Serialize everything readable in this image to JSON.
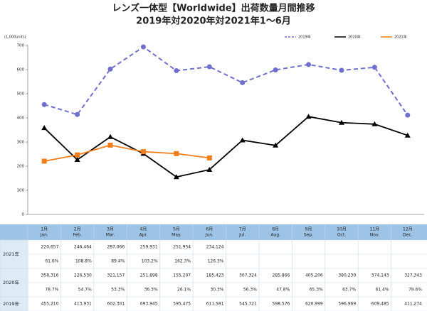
{
  "chart_data": {
    "type": "line",
    "title": "レンズ一体型【Worldwide】出荷数量月間推移",
    "subtitle": "2019年対2020年対2021年1～6月",
    "y_unit_label": "(1,000units)",
    "categories": [
      "1月",
      "2月",
      "3月",
      "4月",
      "5月",
      "6月",
      "7月",
      "8月",
      "9月",
      "10月",
      "11月",
      "12月"
    ],
    "categories_en": [
      "Jan.",
      "Feb.",
      "Mar.",
      "Apr.",
      "May.",
      "Jun.",
      "Jul.",
      "Aug.",
      "Sep.",
      "Oct.",
      "Nov.",
      "Dec."
    ],
    "ylim": [
      0,
      700
    ],
    "yticks": [
      0,
      100,
      200,
      300,
      400,
      500,
      600,
      700
    ],
    "grid": false,
    "legend": "top-right",
    "series": [
      {
        "name": "2019年",
        "color": "#6f6fd0",
        "dashed": true,
        "marker": "circle",
        "values": [
          455.21,
          413.931,
          602.301,
          693.945,
          595.475,
          611.581,
          545.721,
          598.576,
          620.999,
          596.969,
          609.485,
          411.274
        ],
        "value_labels": [
          "455,210",
          "413,931",
          "602,301",
          "693,945",
          "595,475",
          "611,581",
          "545,721",
          "598,576",
          "620,999",
          "596,969",
          "609,485",
          "411,274"
        ]
      },
      {
        "name": "2020年",
        "color": "#000000",
        "dashed": false,
        "marker": "triangle",
        "values": [
          358.316,
          226.53,
          321.157,
          251.898,
          155.207,
          185.423,
          307.324,
          285.866,
          405.206,
          380.23,
          374.143,
          327.343
        ],
        "value_labels": [
          "358,316",
          "226,530",
          "321,157",
          "251,898",
          "155,207",
          "185,423",
          "307,324",
          "285,866",
          "405,206",
          "380,230",
          "374,143",
          "327,343"
        ],
        "yoy": [
          "78.7%",
          "54.7%",
          "53.3%",
          "36.3%",
          "26.1%",
          "30.3%",
          "56.3%",
          "47.8%",
          "65.3%",
          "63.7%",
          "61.4%",
          "79.6%"
        ]
      },
      {
        "name": "2021年",
        "color": "#f07d1a",
        "dashed": false,
        "marker": "square",
        "values": [
          220.657,
          246.464,
          287.066,
          259.931,
          251.954,
          234.124,
          null,
          null,
          null,
          null,
          null,
          null
        ],
        "value_labels": [
          "220,657",
          "246,464",
          "287,066",
          "259,931",
          "251,954",
          "234,124",
          null,
          null,
          null,
          null,
          null,
          null
        ],
        "yoy": [
          "61.6%",
          "108.8%",
          "89.4%",
          "103.2%",
          "162.3%",
          "126.3%",
          null,
          null,
          null,
          null,
          null,
          null
        ]
      }
    ]
  }
}
